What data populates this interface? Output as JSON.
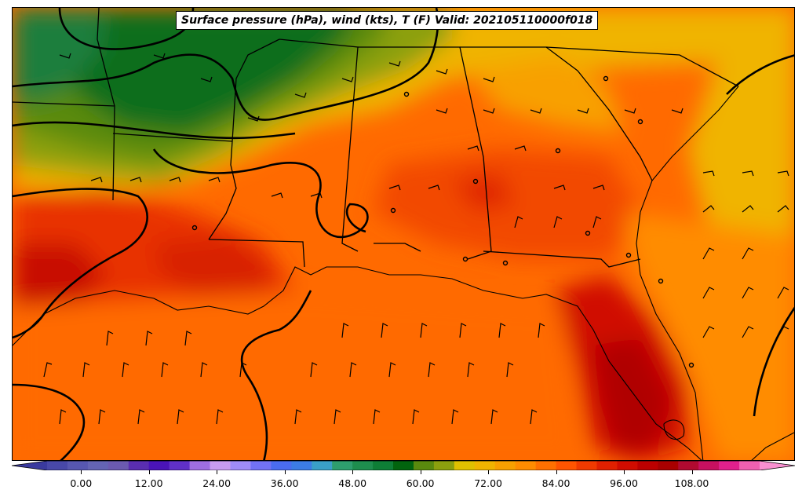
{
  "title": "Surface pressure (hPa), wind (kts), T (F) Valid: 202105110000f018",
  "map": {
    "field": "surface temperature",
    "units": "F",
    "overlays": [
      "isobars",
      "wind-barbs",
      "state-boundaries",
      "coastlines"
    ]
  },
  "colorbar": {
    "min": -6,
    "max": 120,
    "step": 3,
    "extend": "both",
    "tick_labels": [
      "0.00",
      "12.00",
      "24.00",
      "36.00",
      "48.00",
      "60.00",
      "72.00",
      "84.00",
      "96.00",
      "108.00"
    ],
    "colors": [
      "#3a3a9e",
      "#4848a8",
      "#5757b0",
      "#6464b4",
      "#6b5ab0",
      "#5a2eb0",
      "#4a14b8",
      "#6030c8",
      "#9e6ee0",
      "#c89cf0",
      "#9e8cf8",
      "#7272f4",
      "#4a6cf0",
      "#3c7ce6",
      "#3aa0c8",
      "#2e9e6e",
      "#1e8e4e",
      "#0e7e36",
      "#02640e",
      "#5a8a0e",
      "#8ca00e",
      "#e0c000",
      "#f0b400",
      "#f8a000",
      "#ff8c00",
      "#ff7000",
      "#ff5400",
      "#f03a00",
      "#e02000",
      "#d00c00",
      "#bc0000",
      "#a80000",
      "#b00a30",
      "#c81060",
      "#e0208c",
      "#f060b0",
      "#f890d0"
    ]
  }
}
